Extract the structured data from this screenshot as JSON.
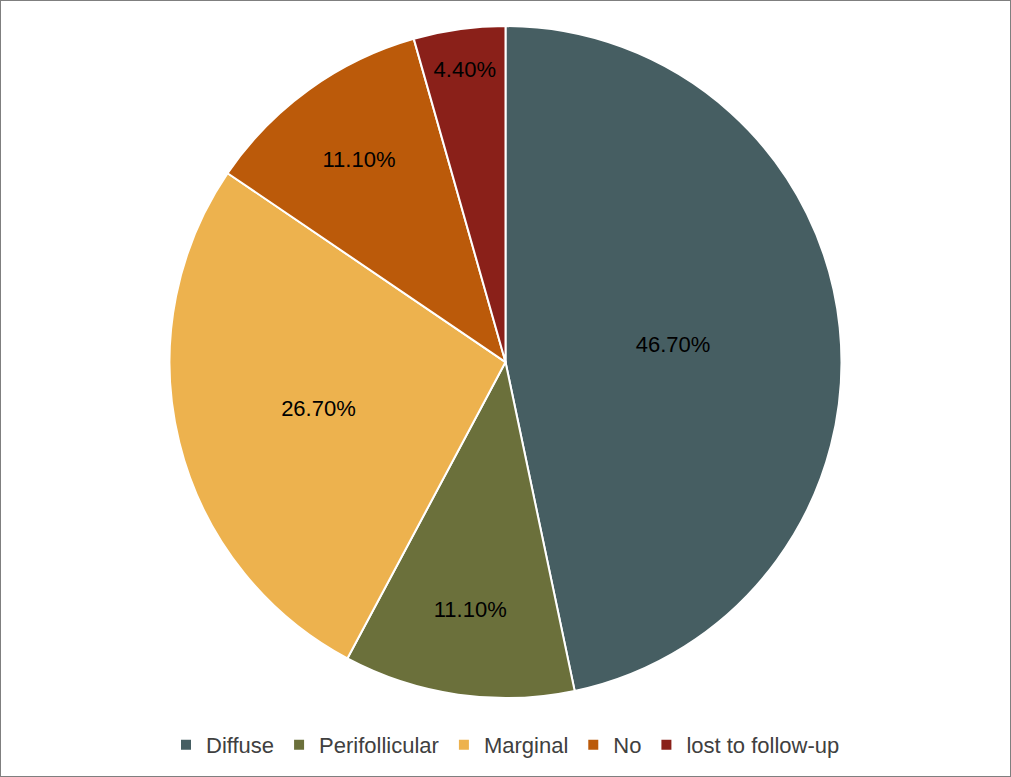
{
  "chart_data": {
    "type": "pie",
    "categories": [
      "Diffuse",
      "Perifollicular",
      "Marginal",
      "No",
      "lost to follow-up"
    ],
    "values": [
      46.7,
      11.1,
      26.7,
      11.1,
      4.4
    ],
    "value_labels": [
      "46.70%",
      "11.10%",
      "26.70%",
      "11.10%",
      "4.40%"
    ],
    "colors": [
      "#465e62",
      "#6b703b",
      "#edb24e",
      "#bb5a0a",
      "#8a2019"
    ],
    "data_labels": true,
    "legend": "bottom"
  }
}
